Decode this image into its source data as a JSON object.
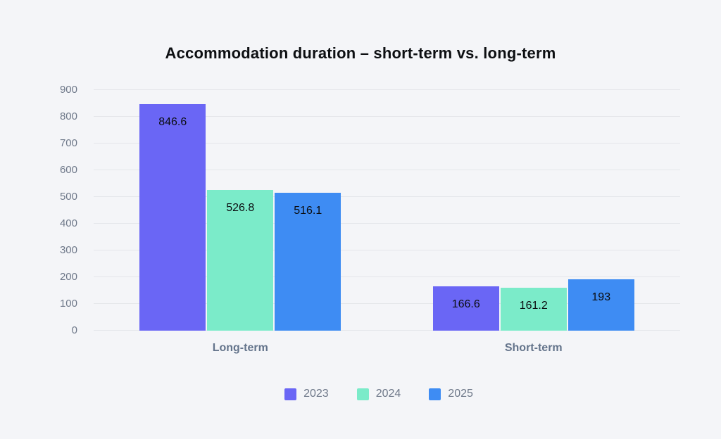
{
  "title": "Accommodation duration – short-term vs. long-term",
  "chart_data": {
    "type": "bar",
    "title": "Accommodation duration – short-term vs. long-term",
    "categories": [
      "Long-term",
      "Short-term"
    ],
    "series": [
      {
        "name": "2023",
        "color": "#6A66F5",
        "values": [
          846.6,
          166.6
        ],
        "labels": [
          "846.6",
          "166.6"
        ]
      },
      {
        "name": "2024",
        "color": "#7BEBC9",
        "values": [
          526.8,
          161.2
        ],
        "labels": [
          "526.8",
          "161.2"
        ]
      },
      {
        "name": "2025",
        "color": "#3E8CF3",
        "values": [
          516.1,
          193
        ],
        "labels": [
          "516.1",
          "193"
        ]
      }
    ],
    "xlabel": "",
    "ylabel": "",
    "ylim": [
      0,
      900
    ],
    "yticks": [
      0,
      100,
      200,
      300,
      400,
      500,
      600,
      700,
      800,
      900
    ],
    "grid": true,
    "legend_position": "bottom"
  },
  "colors": {
    "background": "#f4f5f8",
    "gridline": "#e4e6ea",
    "axis_text": "#6e7889",
    "category_text": "#64748b",
    "title_text": "#0d0f12",
    "bar_label_text": "#0b0d10"
  }
}
